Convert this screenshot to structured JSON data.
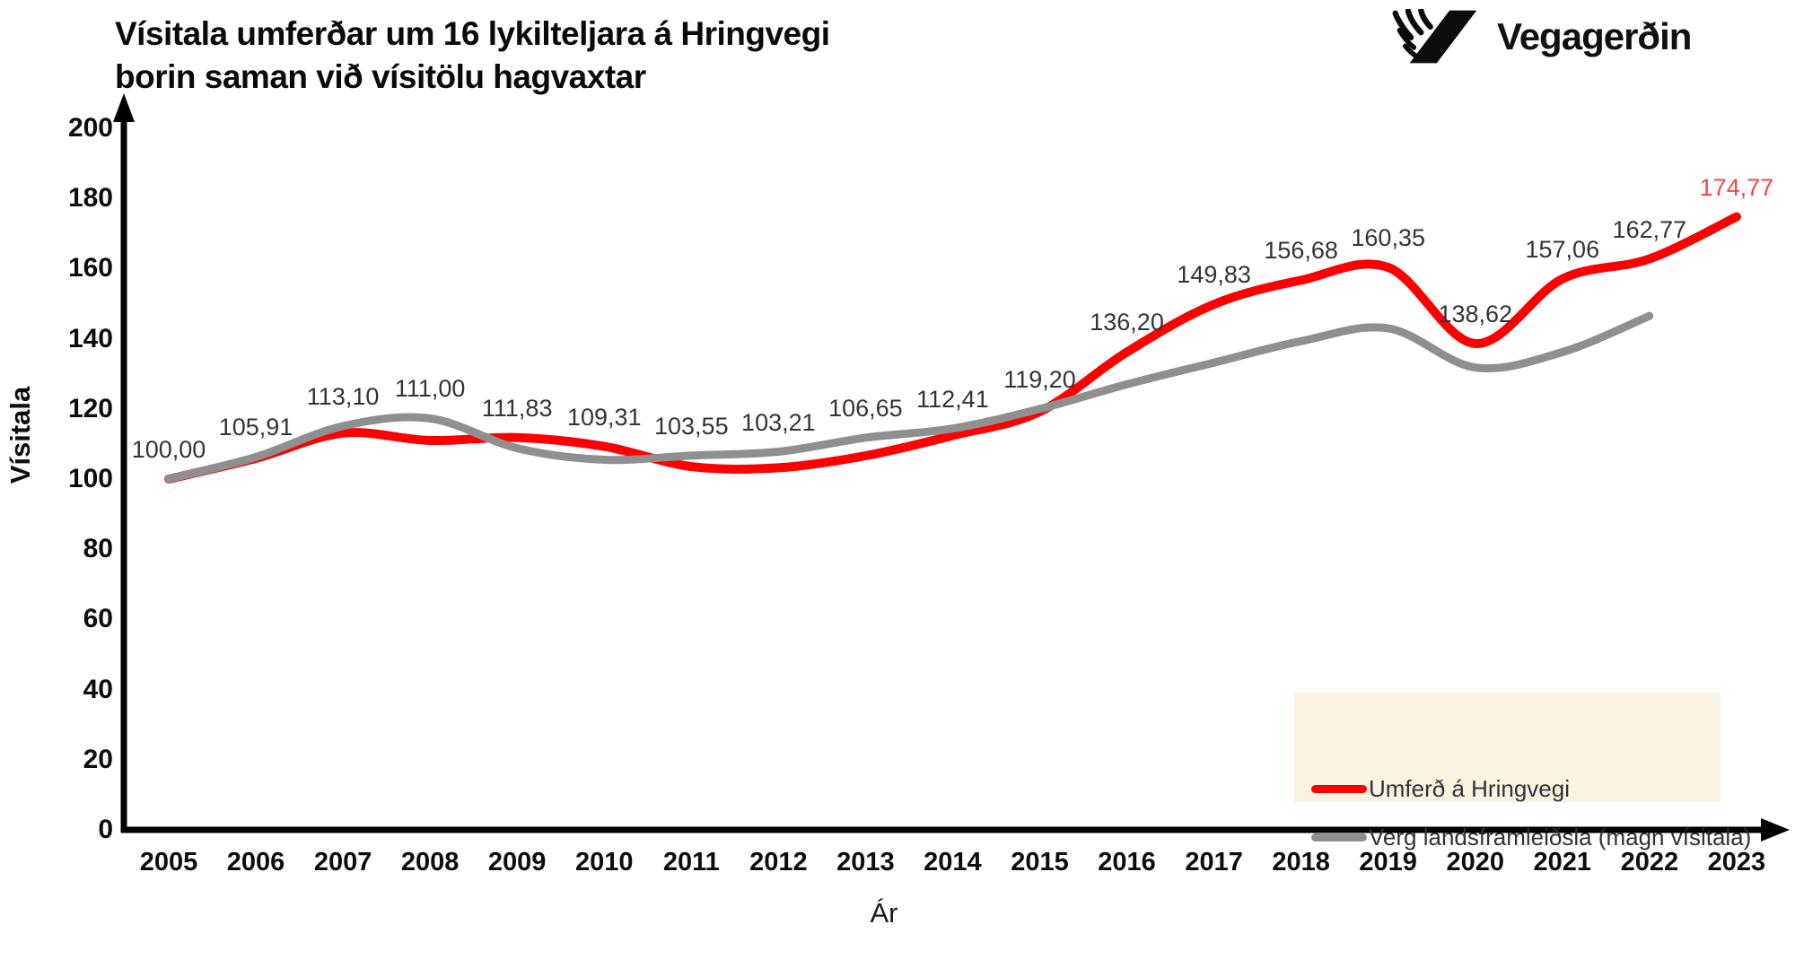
{
  "header": {
    "title_line1": "Vísitala umferðar um 16 lykilteljara á Hringvegi",
    "title_line2": "borin saman við vísitölu hagvaxtar",
    "logo_text": "Vegagerðin"
  },
  "chart_data": {
    "type": "line",
    "title": "Vísitala umferðar um 16 lykilteljara á Hringvegi borin saman við vísitölu hagvaxtar",
    "xlabel": "Ár",
    "ylabel": "Vísitala",
    "ylim": [
      0,
      200
    ],
    "ytick_labels": [
      "0",
      "20",
      "40",
      "60",
      "80",
      "100",
      "120",
      "140",
      "160",
      "180",
      "200"
    ],
    "categories": [
      "2005",
      "2006",
      "2007",
      "2008",
      "2009",
      "2010",
      "2011",
      "2012",
      "2013",
      "2014",
      "2015",
      "2016",
      "2017",
      "2018",
      "2019",
      "2020",
      "2021",
      "2022",
      "2023"
    ],
    "series": [
      {
        "name": "Umferð á Hringvegi",
        "color": "#FE0000",
        "values": [
          100.0,
          105.91,
          113.1,
          111.0,
          111.83,
          109.31,
          103.55,
          103.21,
          106.65,
          112.41,
          119.2,
          136.2,
          149.83,
          156.68,
          160.35,
          138.62,
          157.06,
          162.77,
          174.77
        ]
      },
      {
        "name": "Verg landsframleiðsla (magn vísitala)",
        "color": "#8F8F8F",
        "values": [
          100.0,
          106.3,
          115.1,
          117.3,
          108.8,
          105.5,
          106.7,
          107.8,
          111.8,
          114.4,
          120.0,
          127.0,
          133.2,
          139.3,
          143.0,
          131.8,
          136.2,
          146.5,
          null
        ]
      }
    ],
    "data_labels": [
      "100,00",
      "105,91",
      "113,10",
      "111,00",
      "111,83",
      "109,31",
      "103,55",
      "103,21",
      "106,65",
      "112,41",
      "119,20",
      "136,20",
      "149,83",
      "156,68",
      "160,35",
      "138,62",
      "157,06",
      "162,77",
      "174,77"
    ],
    "data_labels_series": "Umferð á Hringvegi",
    "data_label_color": "#30343B",
    "last_data_label_color": "#F8434A",
    "grid": false,
    "legend_position": "bottom-right",
    "legend_background": "#FBF3E2",
    "axis_color": "#000000"
  }
}
